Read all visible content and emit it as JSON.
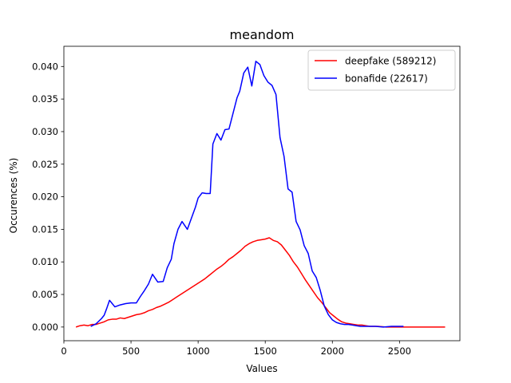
{
  "chart_data": {
    "type": "line",
    "title": "meandom",
    "xlabel": "Values",
    "ylabel": "Occurences (%)",
    "xlim": [
      0,
      2950
    ],
    "ylim": [
      -0.0021,
      0.0431
    ],
    "xticks": [
      0,
      500,
      1000,
      1500,
      2000,
      2500
    ],
    "xtick_labels": [
      "0",
      "500",
      "1000",
      "1500",
      "2000",
      "2500"
    ],
    "yticks": [
      0.0,
      0.005,
      0.01,
      0.015,
      0.02,
      0.025,
      0.03,
      0.035,
      0.04
    ],
    "ytick_labels": [
      "0.000",
      "0.005",
      "0.010",
      "0.015",
      "0.020",
      "0.025",
      "0.030",
      "0.035",
      "0.040"
    ],
    "grid": false,
    "legend_position": "top-right",
    "series": [
      {
        "name": "deepfake (589212)",
        "color": "#ff0000",
        "x": [
          90,
          120,
          150,
          180,
          210,
          240,
          270,
          300,
          330,
          360,
          390,
          420,
          450,
          480,
          510,
          540,
          570,
          600,
          630,
          660,
          690,
          720,
          750,
          780,
          810,
          840,
          870,
          900,
          930,
          960,
          990,
          1020,
          1050,
          1080,
          1110,
          1140,
          1170,
          1200,
          1230,
          1260,
          1290,
          1320,
          1350,
          1380,
          1410,
          1440,
          1470,
          1500,
          1530,
          1560,
          1590,
          1620,
          1650,
          1680,
          1710,
          1740,
          1770,
          1800,
          1830,
          1860,
          1890,
          1920,
          1950,
          1980,
          2010,
          2040,
          2070,
          2100,
          2130,
          2160,
          2190,
          2220,
          2250,
          2280,
          2310,
          2340,
          2400,
          2500,
          2600,
          2700,
          2840
        ],
        "y": [
          0.0,
          0.0002,
          0.0003,
          0.0002,
          0.0004,
          0.0004,
          0.0006,
          0.0008,
          0.0011,
          0.0012,
          0.0012,
          0.0014,
          0.0013,
          0.0015,
          0.0017,
          0.0019,
          0.002,
          0.0022,
          0.0025,
          0.0027,
          0.003,
          0.0032,
          0.0035,
          0.0038,
          0.0042,
          0.0046,
          0.005,
          0.0054,
          0.0058,
          0.0062,
          0.0066,
          0.007,
          0.0074,
          0.0079,
          0.0084,
          0.0089,
          0.0093,
          0.0098,
          0.0104,
          0.0108,
          0.0113,
          0.0118,
          0.0124,
          0.0128,
          0.0131,
          0.0133,
          0.0134,
          0.0135,
          0.0137,
          0.0133,
          0.0131,
          0.0126,
          0.0118,
          0.011,
          0.01,
          0.0092,
          0.0082,
          0.0072,
          0.0063,
          0.0054,
          0.0045,
          0.0038,
          0.003,
          0.0022,
          0.0017,
          0.0012,
          0.0008,
          0.0006,
          0.0005,
          0.0004,
          0.0003,
          0.0003,
          0.0002,
          0.0001,
          0.0001,
          0.0001,
          0.0,
          0.0,
          0.0,
          0.0,
          0.0
        ]
      },
      {
        "name": "bonafide (22617)",
        "color": "#0000ff",
        "x": [
          200,
          240,
          280,
          300,
          320,
          340,
          380,
          420,
          460,
          500,
          540,
          570,
          600,
          630,
          660,
          700,
          740,
          770,
          800,
          820,
          850,
          880,
          920,
          950,
          980,
          1000,
          1030,
          1060,
          1090,
          1110,
          1140,
          1170,
          1200,
          1230,
          1260,
          1290,
          1310,
          1340,
          1370,
          1400,
          1430,
          1460,
          1490,
          1520,
          1550,
          1580,
          1610,
          1640,
          1670,
          1700,
          1730,
          1760,
          1790,
          1820,
          1850,
          1880,
          1910,
          1940,
          1970,
          2000,
          2030,
          2060,
          2090,
          2120,
          2150,
          2180,
          2210,
          2260,
          2320,
          2380,
          2440,
          2530
        ],
        "y": [
          0.0001,
          0.0005,
          0.0013,
          0.0018,
          0.0029,
          0.0041,
          0.0031,
          0.0034,
          0.0036,
          0.0037,
          0.0037,
          0.0047,
          0.0056,
          0.0066,
          0.0081,
          0.0069,
          0.007,
          0.0091,
          0.0104,
          0.0128,
          0.015,
          0.0162,
          0.015,
          0.0167,
          0.0184,
          0.0198,
          0.0206,
          0.0205,
          0.0205,
          0.0281,
          0.0297,
          0.0287,
          0.0303,
          0.0304,
          0.0328,
          0.0352,
          0.0362,
          0.039,
          0.0399,
          0.037,
          0.0408,
          0.0403,
          0.0386,
          0.0376,
          0.0371,
          0.0357,
          0.0291,
          0.0262,
          0.0212,
          0.0207,
          0.0162,
          0.0149,
          0.0125,
          0.0113,
          0.0086,
          0.0076,
          0.0056,
          0.0032,
          0.0019,
          0.0011,
          0.0007,
          0.0005,
          0.0004,
          0.0004,
          0.0003,
          0.0002,
          0.0001,
          0.0001,
          0.0001,
          0.0,
          0.0001,
          0.0001
        ]
      }
    ]
  }
}
